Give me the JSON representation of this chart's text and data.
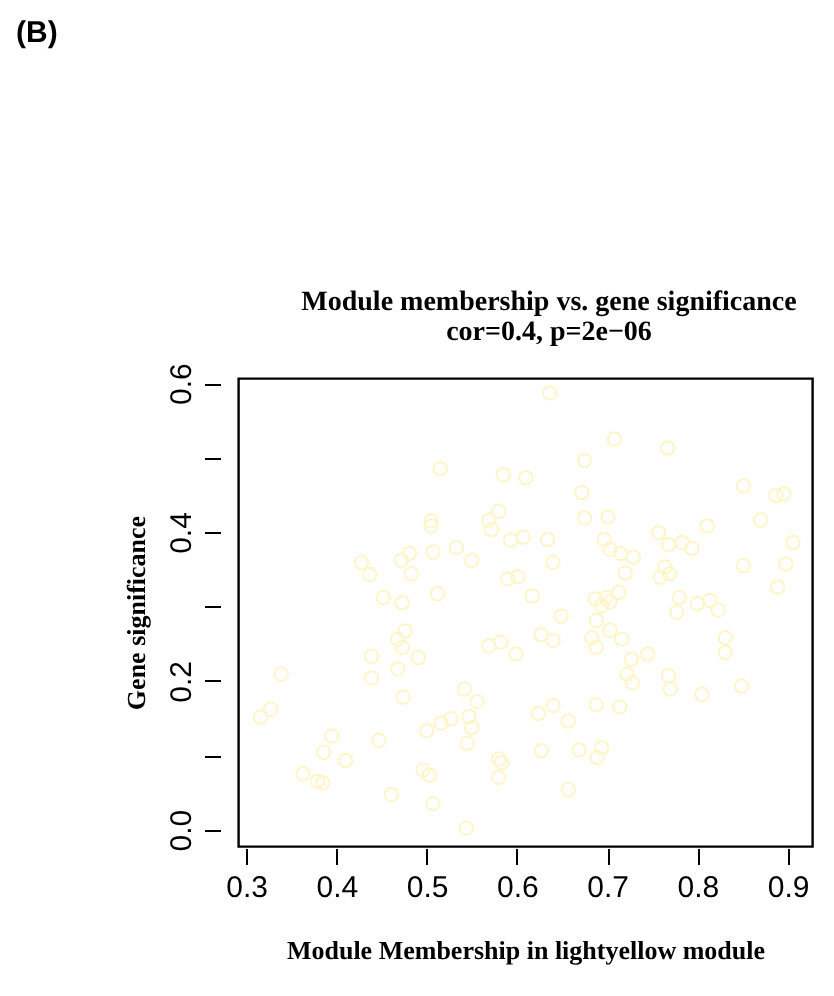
{
  "chart_data": {
    "type": "scatter",
    "title": "Module membership vs. gene significance",
    "subtitle": "cor=0.4, p=2e−06",
    "xlabel": "Module Membership in lightyellow module",
    "ylabel": "Gene significance",
    "annotations": [
      "(B)"
    ],
    "marker": "circle",
    "grid": false,
    "xlim": [
      0.291,
      0.927
    ],
    "ylim": [
      -0.022,
      0.607
    ],
    "xticks": [
      0.3,
      0.4,
      0.5,
      0.6,
      0.7,
      0.8,
      0.9
    ],
    "yticks": [
      {
        "value": 0,
        "label": "0.0"
      },
      {
        "value": 0.1,
        "label": null
      },
      {
        "value": 0.2,
        "label": "0.2"
      },
      {
        "value": 0.3,
        "label": null
      },
      {
        "value": 0.4,
        "label": "0.4"
      },
      {
        "value": 0.5,
        "label": null
      },
      {
        "value": 0.6,
        "label": "0.6"
      }
    ],
    "series": [
      {
        "color": "#fff5c8",
        "x": [
          0.515,
          0.505,
          0.505,
          0.533,
          0.507,
          0.55,
          0.428,
          0.437,
          0.472,
          0.481,
          0.483,
          0.452,
          0.473,
          0.512,
          0.476,
          0.468,
          0.473,
          0.491,
          0.439,
          0.439,
          0.468,
          0.474,
          0.339,
          0.327,
          0.316,
          0.542,
          0.556,
          0.547,
          0.55,
          0.545,
          0.527,
          0.516,
          0.5,
          0.447,
          0.395,
          0.386,
          0.41,
          0.363,
          0.379,
          0.385,
          0.496,
          0.503,
          0.461,
          0.507,
          0.544,
          0.636,
          0.708,
          0.767,
          0.675,
          0.585,
          0.61,
          0.672,
          0.851,
          0.887,
          0.896,
          0.569,
          0.58,
          0.572,
          0.675,
          0.701,
          0.87,
          0.811,
          0.757,
          0.593,
          0.607,
          0.634,
          0.697,
          0.703,
          0.715,
          0.729,
          0.768,
          0.783,
          0.794,
          0.906,
          0.64,
          0.72,
          0.764,
          0.769,
          0.759,
          0.851,
          0.898,
          0.59,
          0.601,
          0.617,
          0.687,
          0.699,
          0.703,
          0.713,
          0.694,
          0.78,
          0.777,
          0.8,
          0.814,
          0.823,
          0.889,
          0.649,
          0.688,
          0.683,
          0.703,
          0.716,
          0.627,
          0.64,
          0.688,
          0.569,
          0.582,
          0.599,
          0.727,
          0.745,
          0.831,
          0.831,
          0.722,
          0.728,
          0.768,
          0.77,
          0.849,
          0.805,
          0.64,
          0.624,
          0.657,
          0.688,
          0.714,
          0.627,
          0.669,
          0.694,
          0.689,
          0.58,
          0.583,
          0.58,
          0.657
        ],
        "values": [
          0.485,
          0.415,
          0.408,
          0.379,
          0.373,
          0.362,
          0.359,
          0.343,
          0.362,
          0.371,
          0.344,
          0.312,
          0.305,
          0.317,
          0.267,
          0.256,
          0.245,
          0.231,
          0.233,
          0.204,
          0.216,
          0.178,
          0.209,
          0.162,
          0.151,
          0.189,
          0.172,
          0.152,
          0.137,
          0.116,
          0.149,
          0.143,
          0.133,
          0.12,
          0.126,
          0.104,
          0.093,
          0.075,
          0.065,
          0.063,
          0.08,
          0.073,
          0.047,
          0.035,
          0.002,
          0.587,
          0.525,
          0.513,
          0.496,
          0.477,
          0.473,
          0.453,
          0.462,
          0.449,
          0.451,
          0.416,
          0.428,
          0.403,
          0.419,
          0.42,
          0.416,
          0.408,
          0.399,
          0.389,
          0.393,
          0.39,
          0.39,
          0.377,
          0.371,
          0.366,
          0.383,
          0.386,
          0.378,
          0.386,
          0.359,
          0.345,
          0.353,
          0.344,
          0.339,
          0.355,
          0.357,
          0.337,
          0.34,
          0.314,
          0.31,
          0.312,
          0.306,
          0.319,
          0.301,
          0.312,
          0.292,
          0.304,
          0.308,
          0.295,
          0.326,
          0.287,
          0.281,
          0.258,
          0.268,
          0.256,
          0.262,
          0.254,
          0.245,
          0.247,
          0.252,
          0.236,
          0.229,
          0.236,
          0.258,
          0.238,
          0.209,
          0.197,
          0.207,
          0.189,
          0.193,
          0.182,
          0.167,
          0.156,
          0.146,
          0.168,
          0.165,
          0.106,
          0.107,
          0.11,
          0.097,
          0.095,
          0.09,
          0.07,
          0.054
        ]
      }
    ]
  }
}
